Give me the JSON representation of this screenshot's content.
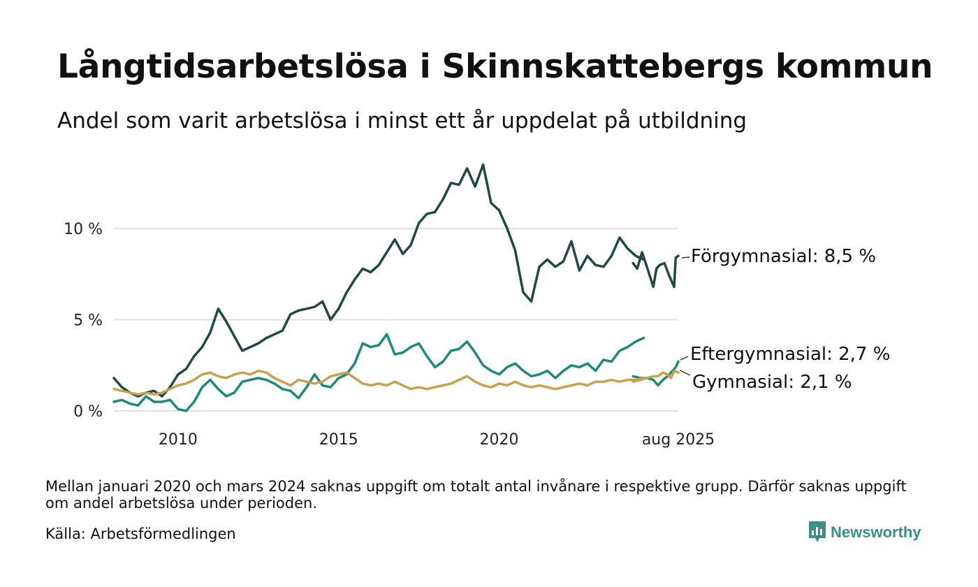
{
  "title": "Långtidsarbetslösa i Skinnskattebergs kommun",
  "subtitle": "Andel som varit arbetslösa i minst ett år uppdelat på utbildning",
  "footnote": "Mellan januari 2020 och mars 2024 saknas uppgift om totalt antal invånare i respektive grupp. Därför saknas uppgift om andel arbetslösa under perioden.",
  "source": "Källa: Arbetsförmedlingen",
  "brand": {
    "name": "Newsworthy",
    "color": "#3c8f86",
    "icon": "newsworthy-logo-icon"
  },
  "chart_data": {
    "type": "line",
    "title": "Långtidsarbetslösa i Skinnskattebergs kommun",
    "subtitle": "Andel som varit arbetslösa i minst ett år uppdelat på utbildning",
    "x_ticks": [
      {
        "value": 2010.0,
        "label": "2010"
      },
      {
        "value": 2015.0,
        "label": "2015"
      },
      {
        "value": 2020.0,
        "label": "2020"
      },
      {
        "value": 2025.58,
        "label": "aug 2025"
      }
    ],
    "y_ticks": [
      {
        "value": 0,
        "label": "0 %"
      },
      {
        "value": 5,
        "label": "5 %"
      },
      {
        "value": 10,
        "label": "10 %"
      }
    ],
    "xlim": [
      2008.0,
      2025.58
    ],
    "ylim": [
      0,
      14
    ],
    "grid": true,
    "gap": [
      2021.0,
      2024.17
    ],
    "series": [
      {
        "name": "Förgymnasial",
        "end_label": "Förgymnasial: 8,5 %",
        "color": "#1f4a44",
        "segments": [
          [
            [
              2008.0,
              1.8
            ],
            [
              2008.25,
              1.3
            ],
            [
              2008.5,
              1.0
            ],
            [
              2008.75,
              0.8
            ],
            [
              2009.0,
              1.0
            ],
            [
              2009.25,
              1.1
            ],
            [
              2009.5,
              0.8
            ],
            [
              2009.75,
              1.3
            ],
            [
              2010.0,
              2.0
            ],
            [
              2010.25,
              2.3
            ],
            [
              2010.5,
              3.0
            ],
            [
              2010.75,
              3.5
            ],
            [
              2011.0,
              4.3
            ],
            [
              2011.25,
              5.6
            ],
            [
              2011.5,
              4.9
            ],
            [
              2011.75,
              4.1
            ],
            [
              2012.0,
              3.3
            ],
            [
              2012.25,
              3.5
            ],
            [
              2012.5,
              3.7
            ],
            [
              2012.75,
              4.0
            ],
            [
              2013.0,
              4.2
            ],
            [
              2013.25,
              4.4
            ],
            [
              2013.5,
              5.3
            ],
            [
              2013.75,
              5.5
            ],
            [
              2014.0,
              5.6
            ],
            [
              2014.25,
              5.7
            ],
            [
              2014.5,
              6.0
            ],
            [
              2014.75,
              5.0
            ],
            [
              2015.0,
              5.6
            ],
            [
              2015.25,
              6.5
            ],
            [
              2015.5,
              7.2
            ],
            [
              2015.75,
              7.8
            ],
            [
              2016.0,
              7.6
            ],
            [
              2016.25,
              8.0
            ],
            [
              2016.5,
              8.7
            ],
            [
              2016.75,
              9.4
            ],
            [
              2017.0,
              8.6
            ],
            [
              2017.25,
              9.1
            ],
            [
              2017.5,
              10.3
            ],
            [
              2017.75,
              10.8
            ],
            [
              2018.0,
              10.9
            ],
            [
              2018.25,
              11.6
            ],
            [
              2018.5,
              12.5
            ],
            [
              2018.75,
              12.4
            ],
            [
              2019.0,
              13.3
            ],
            [
              2019.25,
              12.3
            ],
            [
              2019.5,
              13.5
            ],
            [
              2019.75,
              11.4
            ],
            [
              2020.0,
              11.0
            ],
            [
              2020.25,
              10.0
            ],
            [
              2020.5,
              8.8
            ],
            [
              2020.75,
              6.5
            ],
            [
              2021.0,
              6.0
            ],
            [
              2021.25,
              7.9
            ],
            [
              2021.5,
              8.3
            ],
            [
              2021.75,
              7.9
            ],
            [
              2022.0,
              8.2
            ],
            [
              2022.25,
              9.3
            ],
            [
              2022.5,
              7.7
            ],
            [
              2022.75,
              8.5
            ],
            [
              2023.0,
              8.0
            ],
            [
              2023.25,
              7.9
            ],
            [
              2023.5,
              8.5
            ],
            [
              2023.75,
              9.5
            ],
            [
              2024.0,
              8.9
            ],
            [
              2024.25,
              8.5
            ],
            [
              2024.5,
              8.3
            ]
          ],
          [
            [
              2024.17,
              8.1
            ],
            [
              2024.3,
              7.8
            ],
            [
              2024.45,
              8.7
            ],
            [
              2024.6,
              7.9
            ],
            [
              2024.8,
              6.8
            ],
            [
              2024.9,
              7.8
            ],
            [
              2025.0,
              8.0
            ],
            [
              2025.15,
              8.1
            ],
            [
              2025.3,
              7.4
            ],
            [
              2025.45,
              6.8
            ],
            [
              2025.5,
              8.4
            ],
            [
              2025.58,
              8.5
            ]
          ]
        ]
      },
      {
        "name": "Eftergymnasial",
        "end_label": "Eftergymnasial: 2,7 %",
        "color": "#1b8a78",
        "segments": [
          [
            [
              2008.0,
              0.5
            ],
            [
              2008.25,
              0.6
            ],
            [
              2008.5,
              0.4
            ],
            [
              2008.75,
              0.3
            ],
            [
              2009.0,
              0.8
            ],
            [
              2009.25,
              0.5
            ],
            [
              2009.5,
              0.5
            ],
            [
              2009.75,
              0.6
            ],
            [
              2010.0,
              0.1
            ],
            [
              2010.25,
              0.0
            ],
            [
              2010.5,
              0.5
            ],
            [
              2010.75,
              1.3
            ],
            [
              2011.0,
              1.7
            ],
            [
              2011.25,
              1.2
            ],
            [
              2011.5,
              0.8
            ],
            [
              2011.75,
              1.0
            ],
            [
              2012.0,
              1.6
            ],
            [
              2012.25,
              1.7
            ],
            [
              2012.5,
              1.8
            ],
            [
              2012.75,
              1.7
            ],
            [
              2013.0,
              1.5
            ],
            [
              2013.25,
              1.2
            ],
            [
              2013.5,
              1.1
            ],
            [
              2013.75,
              0.7
            ],
            [
              2014.0,
              1.3
            ],
            [
              2014.25,
              2.0
            ],
            [
              2014.5,
              1.4
            ],
            [
              2014.75,
              1.3
            ],
            [
              2015.0,
              1.8
            ],
            [
              2015.25,
              2.0
            ],
            [
              2015.5,
              2.6
            ],
            [
              2015.75,
              3.7
            ],
            [
              2016.0,
              3.5
            ],
            [
              2016.25,
              3.6
            ],
            [
              2016.5,
              4.2
            ],
            [
              2016.75,
              3.1
            ],
            [
              2017.0,
              3.2
            ],
            [
              2017.25,
              3.5
            ],
            [
              2017.5,
              3.7
            ],
            [
              2017.75,
              3.0
            ],
            [
              2018.0,
              2.4
            ],
            [
              2018.25,
              2.7
            ],
            [
              2018.5,
              3.3
            ],
            [
              2018.75,
              3.4
            ],
            [
              2019.0,
              3.8
            ],
            [
              2019.25,
              3.2
            ],
            [
              2019.5,
              2.5
            ],
            [
              2019.75,
              2.2
            ],
            [
              2020.0,
              2.0
            ],
            [
              2020.25,
              2.4
            ],
            [
              2020.5,
              2.6
            ],
            [
              2020.75,
              2.2
            ],
            [
              2021.0,
              1.9
            ],
            [
              2021.25,
              2.0
            ],
            [
              2021.5,
              2.2
            ],
            [
              2021.75,
              1.8
            ],
            [
              2022.0,
              2.2
            ],
            [
              2022.25,
              2.5
            ],
            [
              2022.5,
              2.4
            ],
            [
              2022.75,
              2.6
            ],
            [
              2023.0,
              2.2
            ],
            [
              2023.25,
              2.8
            ],
            [
              2023.5,
              2.7
            ],
            [
              2023.75,
              3.3
            ],
            [
              2024.0,
              3.5
            ],
            [
              2024.25,
              3.8
            ],
            [
              2024.5,
              4.0
            ]
          ],
          [
            [
              2024.17,
              1.9
            ],
            [
              2024.4,
              1.8
            ],
            [
              2024.6,
              1.8
            ],
            [
              2024.8,
              1.7
            ],
            [
              2024.95,
              1.4
            ],
            [
              2025.1,
              1.7
            ],
            [
              2025.25,
              1.9
            ],
            [
              2025.4,
              2.2
            ],
            [
              2025.5,
              2.4
            ],
            [
              2025.58,
              2.7
            ]
          ]
        ]
      },
      {
        "name": "Gymnasial",
        "end_label": "Gymnasial: 2,1 %",
        "color": "#c9a04e",
        "segments": [
          [
            [
              2008.0,
              1.2
            ],
            [
              2008.25,
              1.1
            ],
            [
              2008.5,
              1.0
            ],
            [
              2008.75,
              0.9
            ],
            [
              2009.0,
              1.0
            ],
            [
              2009.25,
              0.9
            ],
            [
              2009.5,
              1.0
            ],
            [
              2009.75,
              1.2
            ],
            [
              2010.0,
              1.4
            ],
            [
              2010.25,
              1.5
            ],
            [
              2010.5,
              1.7
            ],
            [
              2010.75,
              2.0
            ],
            [
              2011.0,
              2.1
            ],
            [
              2011.25,
              1.9
            ],
            [
              2011.5,
              1.8
            ],
            [
              2011.75,
              2.0
            ],
            [
              2012.0,
              2.1
            ],
            [
              2012.25,
              2.0
            ],
            [
              2012.5,
              2.2
            ],
            [
              2012.75,
              2.1
            ],
            [
              2013.0,
              1.8
            ],
            [
              2013.25,
              1.6
            ],
            [
              2013.5,
              1.4
            ],
            [
              2013.75,
              1.7
            ],
            [
              2014.0,
              1.6
            ],
            [
              2014.25,
              1.5
            ],
            [
              2014.5,
              1.6
            ],
            [
              2014.75,
              1.9
            ],
            [
              2015.0,
              2.0
            ],
            [
              2015.25,
              2.1
            ],
            [
              2015.5,
              1.8
            ],
            [
              2015.75,
              1.5
            ],
            [
              2016.0,
              1.4
            ],
            [
              2016.25,
              1.5
            ],
            [
              2016.5,
              1.4
            ],
            [
              2016.75,
              1.6
            ],
            [
              2017.0,
              1.4
            ],
            [
              2017.25,
              1.2
            ],
            [
              2017.5,
              1.3
            ],
            [
              2017.75,
              1.2
            ],
            [
              2018.0,
              1.3
            ],
            [
              2018.25,
              1.4
            ],
            [
              2018.5,
              1.5
            ],
            [
              2018.75,
              1.7
            ],
            [
              2019.0,
              1.9
            ],
            [
              2019.25,
              1.6
            ],
            [
              2019.5,
              1.4
            ],
            [
              2019.75,
              1.3
            ],
            [
              2020.0,
              1.5
            ],
            [
              2020.25,
              1.4
            ],
            [
              2020.5,
              1.6
            ],
            [
              2020.75,
              1.4
            ],
            [
              2021.0,
              1.3
            ],
            [
              2021.25,
              1.4
            ],
            [
              2021.5,
              1.3
            ],
            [
              2021.75,
              1.2
            ],
            [
              2022.0,
              1.3
            ],
            [
              2022.25,
              1.4
            ],
            [
              2022.5,
              1.5
            ],
            [
              2022.75,
              1.4
            ],
            [
              2023.0,
              1.6
            ],
            [
              2023.25,
              1.6
            ],
            [
              2023.5,
              1.7
            ],
            [
              2023.75,
              1.6
            ],
            [
              2024.0,
              1.7
            ],
            [
              2024.25,
              1.7
            ],
            [
              2024.5,
              1.8
            ]
          ],
          [
            [
              2024.17,
              1.6
            ],
            [
              2024.4,
              1.7
            ],
            [
              2024.6,
              1.8
            ],
            [
              2024.8,
              1.9
            ],
            [
              2024.95,
              1.9
            ],
            [
              2025.1,
              2.1
            ],
            [
              2025.25,
              2.0
            ],
            [
              2025.35,
              1.8
            ],
            [
              2025.45,
              2.2
            ],
            [
              2025.58,
              2.1
            ]
          ]
        ]
      }
    ]
  }
}
